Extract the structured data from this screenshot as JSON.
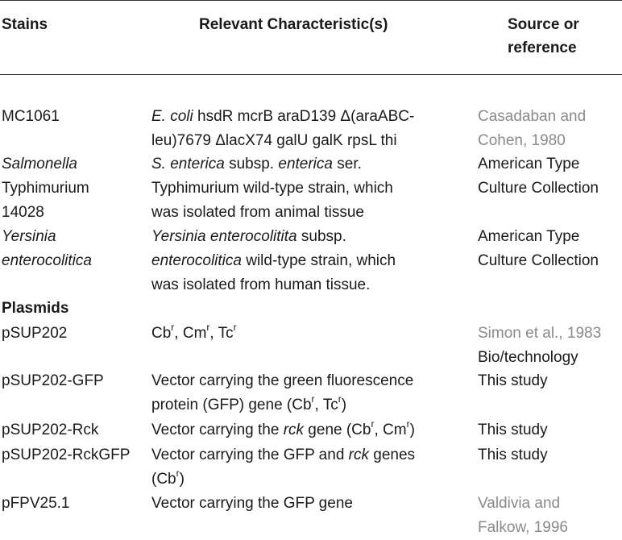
{
  "header": {
    "col1": "Stains",
    "col2": "Relevant Characteristic(s)",
    "col3_line1": "Source or",
    "col3_line2": "reference"
  },
  "strains": [
    {
      "name_lines": [
        "MC1061"
      ],
      "char_lines": [
        "E. coli hsdR mcrB araD139 Δ(araABC-",
        "leu)7679 ΔlacX74 galU galK rpsL thi"
      ],
      "source_lines": [
        "Casadaban and",
        "Cohen, 1980"
      ]
    },
    {
      "name_lines": [
        "Salmonella",
        "Typhimurium",
        "14028"
      ],
      "char_lines": [
        "S. enterica subsp. enterica ser.",
        "Typhimurium wild-type strain, which",
        "was isolated from animal tissue"
      ],
      "source_lines": [
        "American Type",
        "Culture Collection"
      ]
    },
    {
      "name_lines": [
        "Yersinia",
        "enterocolitica"
      ],
      "char_lines": [
        "Yersinia enterocolitita subsp.",
        "enterocolitica wild-type strain, which",
        "was isolated from human tissue."
      ],
      "source_lines": [
        "American Type",
        "Culture Collection"
      ]
    }
  ],
  "plasmids_heading": "Plasmids",
  "plasmids": [
    {
      "name": "pSUP202",
      "char": [
        "Cb",
        "r",
        ", Cm",
        "r",
        ", Tc",
        "r"
      ],
      "source_lines": [
        "Simon et al., 1983",
        "Bio/technology"
      ]
    },
    {
      "name": "pSUP202-GFP",
      "char_line1": "Vector carrying the green fluorescence",
      "char_line2": [
        "protein (GFP) gene (Cb",
        "r",
        ", Tc",
        "r",
        ")"
      ],
      "source": "This study"
    },
    {
      "name": "pSUP202-Rck",
      "char": [
        "Vector carrying the ",
        "rck",
        " gene (Cb",
        "r",
        ", Cm",
        "r",
        ")"
      ],
      "source": "This study"
    },
    {
      "name": "pSUP202-RckGFP",
      "char_line1": [
        "Vector carrying the GFP and ",
        "rck",
        " genes"
      ],
      "char_line2": [
        "(Cb",
        "r",
        ")"
      ],
      "source": "This study"
    },
    {
      "name": "pFPV25.1",
      "char": "Vector carrying the GFP gene",
      "source_lines": [
        "Valdivia and",
        "Falkow, 1996"
      ]
    }
  ],
  "colors": {
    "text": "#1a1a1a",
    "reference_link": "#8a8a8a",
    "rule": "#333333"
  }
}
